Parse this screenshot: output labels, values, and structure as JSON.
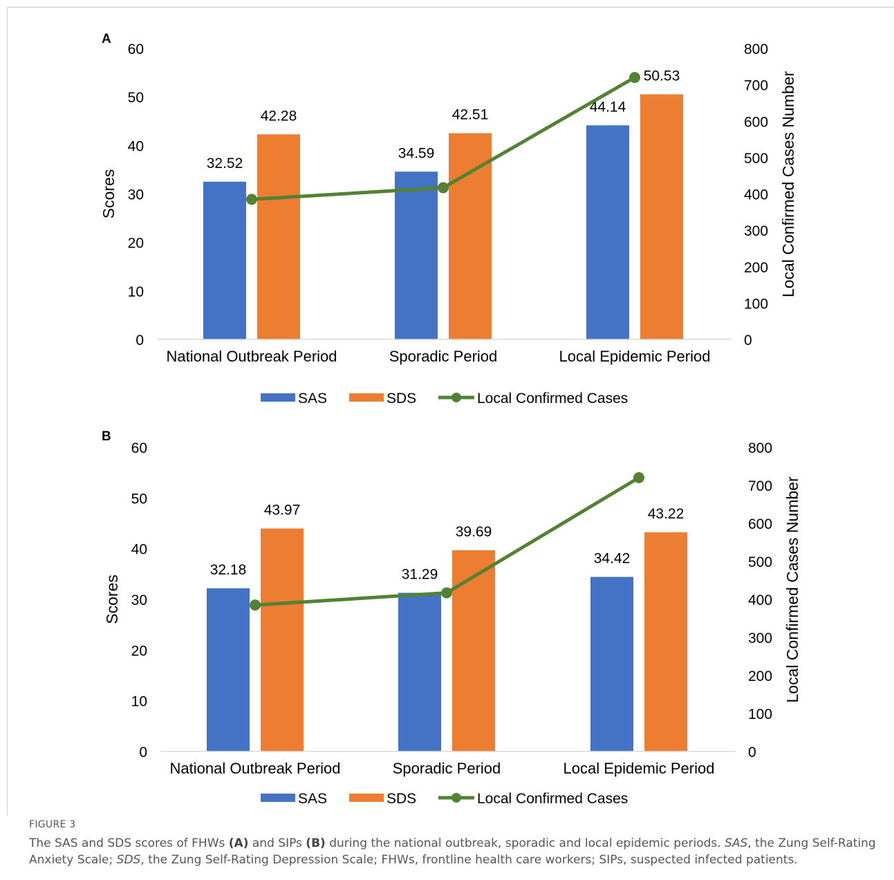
{
  "chart_data": [
    {
      "type": "bar",
      "panel_label": "A",
      "categories": [
        "National Outbreak Period",
        "Sporadic Period",
        "Local Epidemic Period"
      ],
      "series": [
        {
          "name": "SAS",
          "values": [
            32.52,
            34.59,
            44.14
          ],
          "color": "#4472C4"
        },
        {
          "name": "SDS",
          "values": [
            42.28,
            42.51,
            50.53
          ],
          "color": "#ED7D31"
        }
      ],
      "line_series": {
        "name": "Local Confirmed Cases",
        "values": [
          385,
          417,
          720
        ],
        "color": "#548235",
        "axis": "right"
      },
      "ylabel": "Scores",
      "ylabel_right": "Local Confirmed Cases Number",
      "ylim": [
        0,
        60
      ],
      "ylim_right": [
        0,
        800
      ],
      "yticks": [
        "0",
        "10",
        "20",
        "30",
        "40",
        "50",
        "60"
      ],
      "yticks_right": [
        "0",
        "100",
        "200",
        "300",
        "400",
        "500",
        "600",
        "700",
        "800"
      ],
      "data_labels": [
        [
          "32.52",
          "34.59",
          "44.14"
        ],
        [
          "42.28",
          "42.51",
          "50.53"
        ]
      ],
      "legend": "bottom",
      "grid": false
    },
    {
      "type": "bar",
      "panel_label": "B",
      "categories": [
        "National Outbreak Period",
        "Sporadic Period",
        "Local Epidemic Period"
      ],
      "series": [
        {
          "name": "SAS",
          "values": [
            32.18,
            31.29,
            34.42
          ],
          "color": "#4472C4"
        },
        {
          "name": "SDS",
          "values": [
            43.97,
            39.69,
            43.22
          ],
          "color": "#ED7D31"
        }
      ],
      "line_series": {
        "name": "Local Confirmed Cases",
        "values": [
          385,
          417,
          720
        ],
        "color": "#548235",
        "axis": "right"
      },
      "ylabel": "Scores",
      "ylabel_right": "Local Confirmed Cases Number",
      "ylim": [
        0,
        60
      ],
      "ylim_right": [
        0,
        800
      ],
      "yticks": [
        "0",
        "10",
        "20",
        "30",
        "40",
        "50",
        "60"
      ],
      "yticks_right": [
        "0",
        "100",
        "200",
        "300",
        "400",
        "500",
        "600",
        "700",
        "800"
      ],
      "data_labels": [
        [
          "32.18",
          "31.29",
          "34.42"
        ],
        [
          "43.97",
          "39.69",
          "43.22"
        ]
      ],
      "legend": "bottom",
      "grid": false
    }
  ],
  "figure": {
    "label": "FIGURE 3",
    "caption": {
      "p1": "The SAS and SDS scores of FHWs ",
      "b1": "(A)",
      "p2": " and SIPs ",
      "b2": "(B)",
      "p3": " during the national outbreak, sporadic and local epidemic periods. ",
      "i1": "SAS",
      "p4": ", the Zung Self-Rating Anxiety Scale; ",
      "i2": "SDS",
      "p5": ", the Zung Self-Rating Depression Scale; FHWs, frontline health care workers; SIPs, suspected infected patients."
    }
  }
}
